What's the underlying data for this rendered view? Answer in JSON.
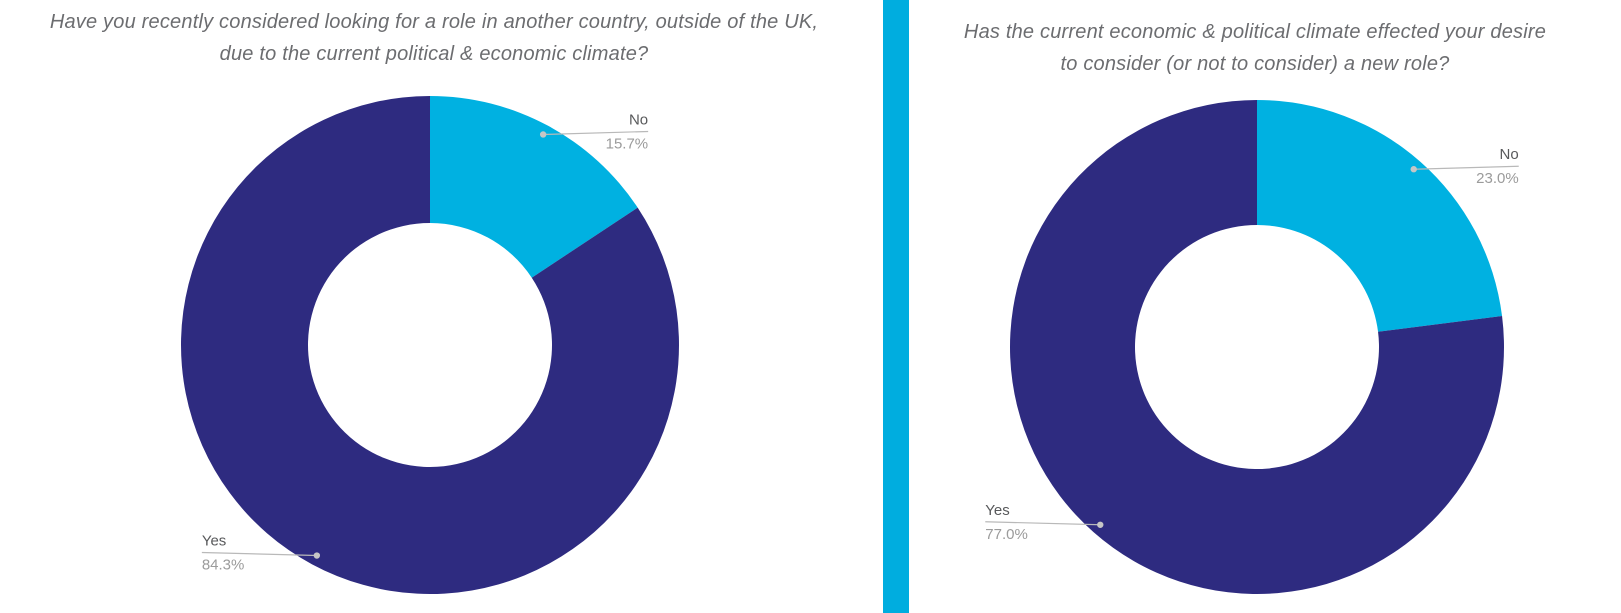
{
  "page": {
    "background": "#ffffff",
    "divider_color": "#00addf"
  },
  "chart_data": [
    {
      "type": "pie",
      "subtype": "donut",
      "title": "Have you recently considered looking for a role in another country, outside of the UK, due to the current political & economic climate?",
      "title_lines": [
        "Have you recently considered looking for a role in another country, outside of the UK,",
        "due to the current political & economic climate?"
      ],
      "hole": 0.5,
      "start_angle": "top",
      "direction": "clockwise",
      "legend": "labeled-leader-lines",
      "slices": [
        {
          "label": "No",
          "value": 15.7,
          "display": "15.7%",
          "color": "#00b1e1"
        },
        {
          "label": "Yes",
          "value": 84.3,
          "display": "84.3%",
          "color": "#2e2b80"
        }
      ]
    },
    {
      "type": "pie",
      "subtype": "donut",
      "title": "Has the current economic & political climate effected your desire to consider (or not to consider) a new role?",
      "title_lines": [
        "Has the current economic & political climate effected your desire",
        "to consider (or not to consider) a new role?"
      ],
      "hole": 0.5,
      "start_angle": "top",
      "direction": "clockwise",
      "legend": "labeled-leader-lines",
      "slices": [
        {
          "label": "No",
          "value": 23.0,
          "display": "23.0%",
          "color": "#00b1e1"
        },
        {
          "label": "Yes",
          "value": 77.0,
          "display": "77.0%",
          "color": "#2e2b80"
        }
      ]
    }
  ]
}
